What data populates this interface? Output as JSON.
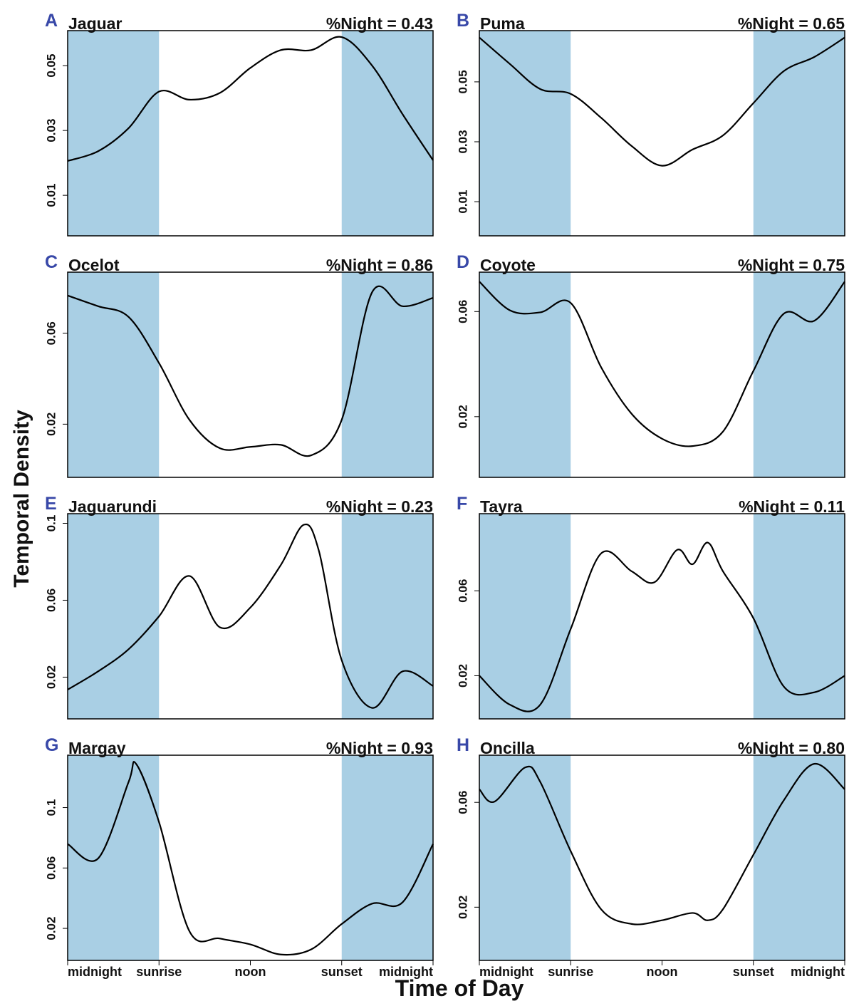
{
  "y_label": "Temporal Density",
  "x_label": "Time of Day",
  "chart_data": [
    {
      "type": "line",
      "panel": "A",
      "title": "Jaguar",
      "annotation": "%Night = 0.43",
      "color": "#000000",
      "night_color": "#a9cfe4",
      "night": [
        [
          0,
          6
        ],
        [
          18,
          24
        ]
      ],
      "x": [
        0,
        2,
        4,
        6,
        8,
        10,
        12,
        14,
        16,
        18,
        20,
        22,
        24
      ],
      "values": [
        0.0206,
        0.0236,
        0.0307,
        0.042,
        0.0395,
        0.0416,
        0.0493,
        0.0548,
        0.0548,
        0.0588,
        0.05,
        0.035,
        0.0208
      ],
      "xlim": [
        0,
        24
      ],
      "ylim": [
        -0.0025,
        0.0608
      ],
      "yticks": [
        0.01,
        0.03,
        0.05
      ]
    },
    {
      "type": "line",
      "panel": "B",
      "title": "Puma",
      "annotation": "%Night = 0.65",
      "color": "#000000",
      "night_color": "#a9cfe4",
      "night": [
        [
          0,
          6
        ],
        [
          18,
          24
        ]
      ],
      "x": [
        0,
        2,
        4,
        6,
        8,
        10,
        12,
        14,
        16,
        18,
        20,
        22,
        24
      ],
      "values": [
        0.0648,
        0.056,
        0.0476,
        0.046,
        0.038,
        0.0286,
        0.022,
        0.0274,
        0.0321,
        0.0429,
        0.0536,
        0.0583,
        0.0648
      ],
      "xlim": [
        0,
        24
      ],
      "ylim": [
        -0.0014,
        0.0671
      ],
      "yticks": [
        0.01,
        0.03,
        0.05
      ]
    },
    {
      "type": "line",
      "panel": "C",
      "title": "Ocelot",
      "annotation": "%Night = 0.86",
      "color": "#000000",
      "night_color": "#a9cfe4",
      "night": [
        [
          0,
          6
        ],
        [
          18,
          24
        ]
      ],
      "x": [
        0,
        2,
        4,
        6,
        8,
        10,
        12,
        14,
        16,
        18,
        20,
        22,
        24
      ],
      "values": [
        0.0766,
        0.0719,
        0.0672,
        0.0469,
        0.0219,
        0.0094,
        0.01,
        0.0109,
        0.0063,
        0.0219,
        0.0781,
        0.0719,
        0.0756
      ],
      "xlim": [
        0,
        24
      ],
      "ylim": [
        -0.0034,
        0.0869
      ],
      "yticks": [
        0.02,
        0.06
      ]
    },
    {
      "type": "line",
      "panel": "D",
      "title": "Coyote",
      "annotation": "%Night = 0.75",
      "color": "#000000",
      "night_color": "#a9cfe4",
      "night": [
        [
          0,
          6
        ],
        [
          18,
          24
        ]
      ],
      "x": [
        0,
        2,
        4,
        6,
        8,
        10,
        12,
        14,
        16,
        18,
        20,
        22,
        24
      ],
      "values": [
        0.0714,
        0.0605,
        0.0597,
        0.0633,
        0.0388,
        0.0211,
        0.0116,
        0.0088,
        0.0143,
        0.0374,
        0.0592,
        0.0565,
        0.0714
      ],
      "xlim": [
        0,
        24
      ],
      "ylim": [
        -0.0031,
        0.075
      ],
      "yticks": [
        0.02,
        0.06
      ]
    },
    {
      "type": "line",
      "panel": "E",
      "title": "Jaguarundi",
      "annotation": "%Night = 0.23",
      "color": "#000000",
      "night_color": "#a9cfe4",
      "night": [
        [
          0,
          6
        ],
        [
          18,
          24
        ]
      ],
      "x": [
        0,
        2,
        4,
        6,
        8,
        10,
        12,
        14,
        15.5,
        16.5,
        18,
        20,
        22,
        24
      ],
      "values": [
        0.0135,
        0.023,
        0.0345,
        0.0516,
        0.0726,
        0.0459,
        0.0562,
        0.0783,
        0.0992,
        0.0857,
        0.0288,
        0.004,
        0.023,
        0.0154
      ],
      "xlim": [
        0,
        24
      ],
      "ylim": [
        -0.0017,
        0.105
      ],
      "yticks": [
        0.02,
        0.06,
        0.1
      ]
    },
    {
      "type": "line",
      "panel": "F",
      "title": "Tayra",
      "annotation": "%Night = 0.11",
      "color": "#000000",
      "night_color": "#a9cfe4",
      "night": [
        [
          0,
          6
        ],
        [
          18,
          24
        ]
      ],
      "x": [
        0,
        2,
        4,
        6,
        8,
        10,
        11.5,
        13,
        14,
        15,
        16,
        18,
        20,
        22,
        24
      ],
      "values": [
        0.02,
        0.0064,
        0.0064,
        0.042,
        0.0776,
        0.0692,
        0.064,
        0.0793,
        0.0725,
        0.0827,
        0.0692,
        0.0471,
        0.0149,
        0.0122,
        0.02
      ],
      "xlim": [
        0,
        24
      ],
      "ylim": [
        -0.0003,
        0.0963
      ],
      "yticks": [
        0.02,
        0.06
      ]
    },
    {
      "type": "line",
      "panel": "G",
      "title": "Margay",
      "annotation": "%Night = 0.93",
      "color": "#000000",
      "night_color": "#a9cfe4",
      "night": [
        [
          0,
          6
        ],
        [
          18,
          24
        ]
      ],
      "x": [
        0,
        2,
        4,
        4.5,
        6,
        8,
        10,
        12,
        14,
        16,
        18,
        20,
        22,
        24
      ],
      "values": [
        0.0759,
        0.0663,
        0.1169,
        0.1289,
        0.0904,
        0.0181,
        0.0133,
        0.0094,
        0.0027,
        0.0061,
        0.0229,
        0.0364,
        0.0373,
        0.0759
      ],
      "xlim": [
        0,
        24
      ],
      "ylim": [
        -0.0012,
        0.1347
      ],
      "yticks": [
        0.02,
        0.06,
        0.1
      ],
      "xticks": [
        {
          "value": 0,
          "label": "midnight"
        },
        {
          "value": 6,
          "label": "sunrise"
        },
        {
          "value": 12,
          "label": "noon"
        },
        {
          "value": 18,
          "label": "sunset"
        },
        {
          "value": 24,
          "label": "midnight"
        }
      ]
    },
    {
      "type": "line",
      "panel": "H",
      "title": "Oncilla",
      "annotation": "%Night = 0.80",
      "color": "#000000",
      "night_color": "#a9cfe4",
      "night": [
        [
          0,
          6
        ],
        [
          18,
          24
        ]
      ],
      "x": [
        0,
        1,
        3,
        4,
        6,
        8,
        10,
        12,
        14,
        15,
        16,
        18,
        20,
        22,
        24
      ],
      "values": [
        0.065,
        0.0603,
        0.0733,
        0.0678,
        0.0414,
        0.0192,
        0.0136,
        0.015,
        0.0178,
        0.015,
        0.0192,
        0.04,
        0.0608,
        0.0747,
        0.065
      ],
      "xlim": [
        0,
        24
      ],
      "ylim": [
        -0.0003,
        0.078
      ],
      "yticks": [
        0.02,
        0.06
      ],
      "xticks": [
        {
          "value": 0,
          "label": "midnight"
        },
        {
          "value": 6,
          "label": "sunrise"
        },
        {
          "value": 12,
          "label": "noon"
        },
        {
          "value": 18,
          "label": "sunset"
        },
        {
          "value": 24,
          "label": "midnight"
        }
      ]
    }
  ]
}
